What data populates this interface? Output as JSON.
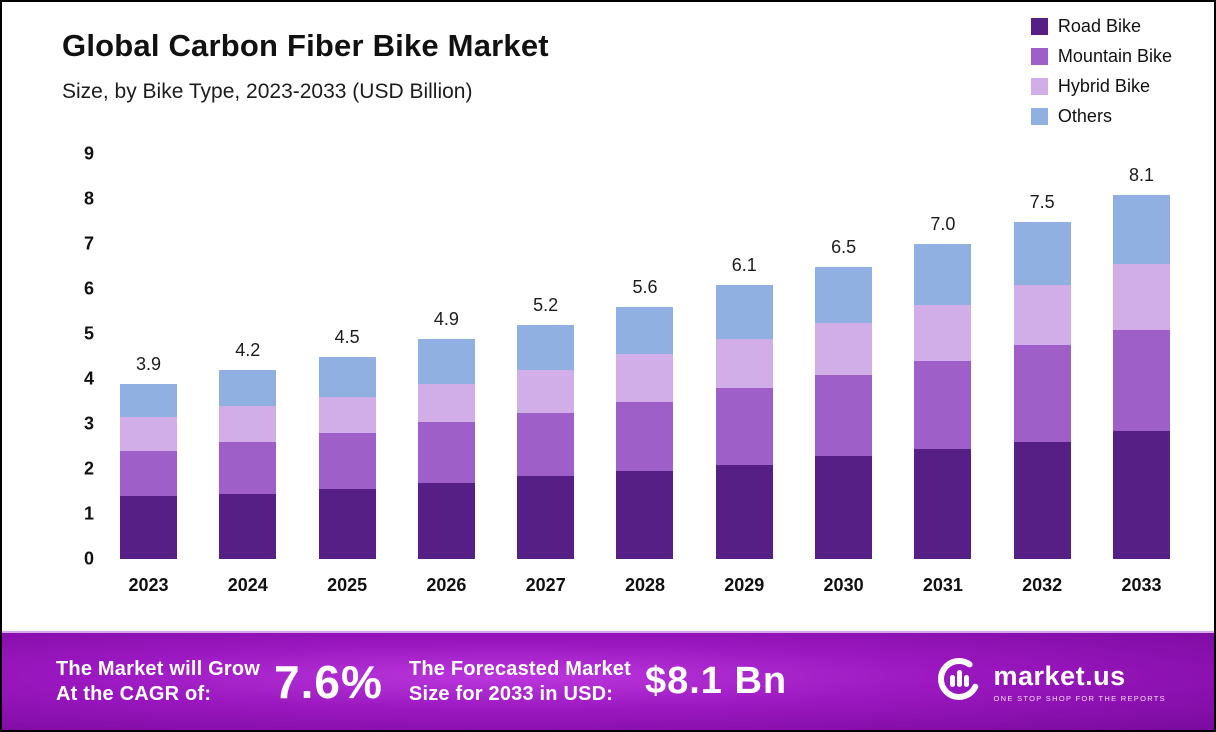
{
  "header": {
    "title": "Global Carbon Fiber Bike Market",
    "subtitle": "Size, by Bike Type, 2023-2033 (USD Billion)"
  },
  "chart_data": {
    "type": "bar",
    "stacked": true,
    "title": "Global Carbon Fiber Bike Market",
    "subtitle": "Size, by Bike Type, 2023-2033 (USD Billion)",
    "unit": "USD Billion",
    "categories": [
      "2023",
      "2024",
      "2025",
      "2026",
      "2027",
      "2028",
      "2029",
      "2030",
      "2031",
      "2032",
      "2033"
    ],
    "series": [
      {
        "name": "Road Bike",
        "color": "#551f86",
        "values": [
          1.4,
          1.45,
          1.55,
          1.7,
          1.85,
          1.95,
          2.1,
          2.3,
          2.45,
          2.6,
          2.85
        ]
      },
      {
        "name": "Mountain Bike",
        "color": "#9e5fc9",
        "values": [
          1.0,
          1.15,
          1.25,
          1.35,
          1.4,
          1.55,
          1.7,
          1.8,
          1.95,
          2.15,
          2.25
        ]
      },
      {
        "name": "Hybrid Bike",
        "color": "#d2aee9",
        "values": [
          0.75,
          0.8,
          0.8,
          0.85,
          0.95,
          1.05,
          1.1,
          1.15,
          1.25,
          1.35,
          1.45
        ]
      },
      {
        "name": "Others",
        "color": "#8fb0e0",
        "values": [
          0.75,
          0.8,
          0.9,
          1.0,
          1.0,
          1.05,
          1.2,
          1.25,
          1.35,
          1.4,
          1.55
        ]
      }
    ],
    "totals": [
      "3.9",
      "4.2",
      "4.5",
      "4.9",
      "5.2",
      "5.6",
      "6.1",
      "6.5",
      "7.0",
      "7.5",
      "8.1"
    ],
    "ylim": [
      0,
      9
    ],
    "yticks": [
      0,
      1,
      2,
      3,
      4,
      5,
      6,
      7,
      8,
      9
    ],
    "grid": false,
    "legend_position": "top-right"
  },
  "banner": {
    "cagr": {
      "label_line1": "The Market will Grow",
      "label_line2": "At the CAGR of:",
      "value": "7.6%"
    },
    "forecast": {
      "label_line1": "The Forecasted Market",
      "label_line2": "Size for 2033 in USD:",
      "value": "$8.1 Bn"
    },
    "brand": {
      "name": "market.us",
      "tagline": "ONE STOP SHOP FOR THE REPORTS"
    }
  },
  "colors": {
    "road_bike": "#551f86",
    "mountain_bike": "#9e5fc9",
    "hybrid_bike": "#d2aee9",
    "others": "#8fb0e0",
    "banner_purple": "#9a17bf",
    "text": "#111111"
  }
}
